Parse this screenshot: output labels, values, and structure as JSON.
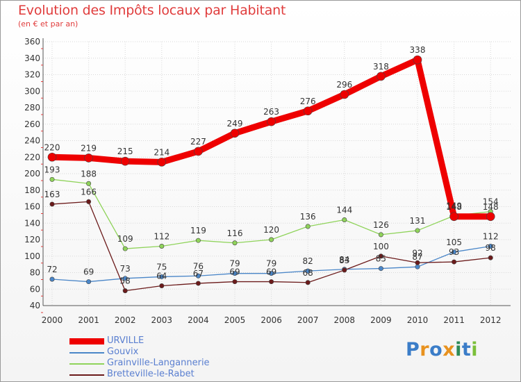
{
  "title": "Evolution des Impôts locaux par Habitant",
  "subtitle": "(en € et par an)",
  "logo": {
    "text": "Proxiti",
    "letters": [
      {
        "char": "P",
        "color": "#3b7dc8"
      },
      {
        "char": "r",
        "color": "#e8921f"
      },
      {
        "char": "o",
        "color": "#3b7dc8"
      },
      {
        "char": "x",
        "color": "#e8921f"
      },
      {
        "char": "i",
        "color": "#2e8b57"
      },
      {
        "char": "t",
        "color": "#3b7dc8"
      },
      {
        "char": "i",
        "color": "#7bbf3a"
      }
    ]
  },
  "chart_data": {
    "type": "line",
    "title": "Evolution des Impôts locaux par Habitant",
    "subtitle": "(en € et par an)",
    "xlabel": "",
    "ylabel": "",
    "ylim": [
      40,
      360
    ],
    "y_ticks": [
      40,
      60,
      80,
      100,
      120,
      140,
      160,
      180,
      200,
      220,
      240,
      260,
      280,
      300,
      320,
      340,
      360
    ],
    "grid": true,
    "legend_position": "bottom-left",
    "categories": [
      "2000",
      "2001",
      "2002",
      "2003",
      "2004",
      "2005",
      "2006",
      "2007",
      "2008",
      "2009",
      "2010",
      "2011",
      "2012"
    ],
    "series": [
      {
        "name": "Gouvix",
        "color": "#4a86c8",
        "values": [
          72,
          69,
          73,
          75,
          76,
          79,
          79,
          82,
          84,
          85,
          87,
          105,
          112
        ],
        "labels": [
          "72",
          "69",
          "73",
          "75",
          "76",
          "79",
          "79",
          "82",
          "84",
          "85",
          "87",
          "105",
          "112"
        ]
      },
      {
        "name": "Bretteville-le-Rabet",
        "color": "#6b1a1a",
        "values": [
          163,
          166,
          58,
          64,
          67,
          69,
          69,
          68,
          83,
          100,
          92,
          93,
          98
        ],
        "labels": [
          "163",
          "166",
          "58",
          "64",
          "67",
          "69",
          "69",
          "68",
          "83",
          "100",
          "92",
          "93",
          "98"
        ]
      },
      {
        "name": "Grainville-Langannerie",
        "color": "#8fd35a",
        "values": [
          193,
          188,
          109,
          112,
          119,
          116,
          120,
          136,
          144,
          126,
          131,
          149,
          154
        ],
        "labels": [
          "193",
          "188",
          "109",
          "112",
          "119",
          "116",
          "120",
          "136",
          "144",
          "126",
          "131",
          "149",
          "154"
        ]
      },
      {
        "name": "URVILLE",
        "color": "#ee0000",
        "values": [
          220,
          219,
          215,
          214,
          227,
          249,
          263,
          276,
          296,
          318,
          338,
          148,
          148
        ],
        "labels": [
          "220",
          "219",
          "215",
          "214",
          "227",
          "249",
          "263",
          "276",
          "296",
          "318",
          "338",
          "148",
          "148"
        ]
      }
    ],
    "legend_order": [
      "URVILLE",
      "Gouvix",
      "Grainville-Langannerie",
      "Bretteville-le-Rabet"
    ]
  }
}
